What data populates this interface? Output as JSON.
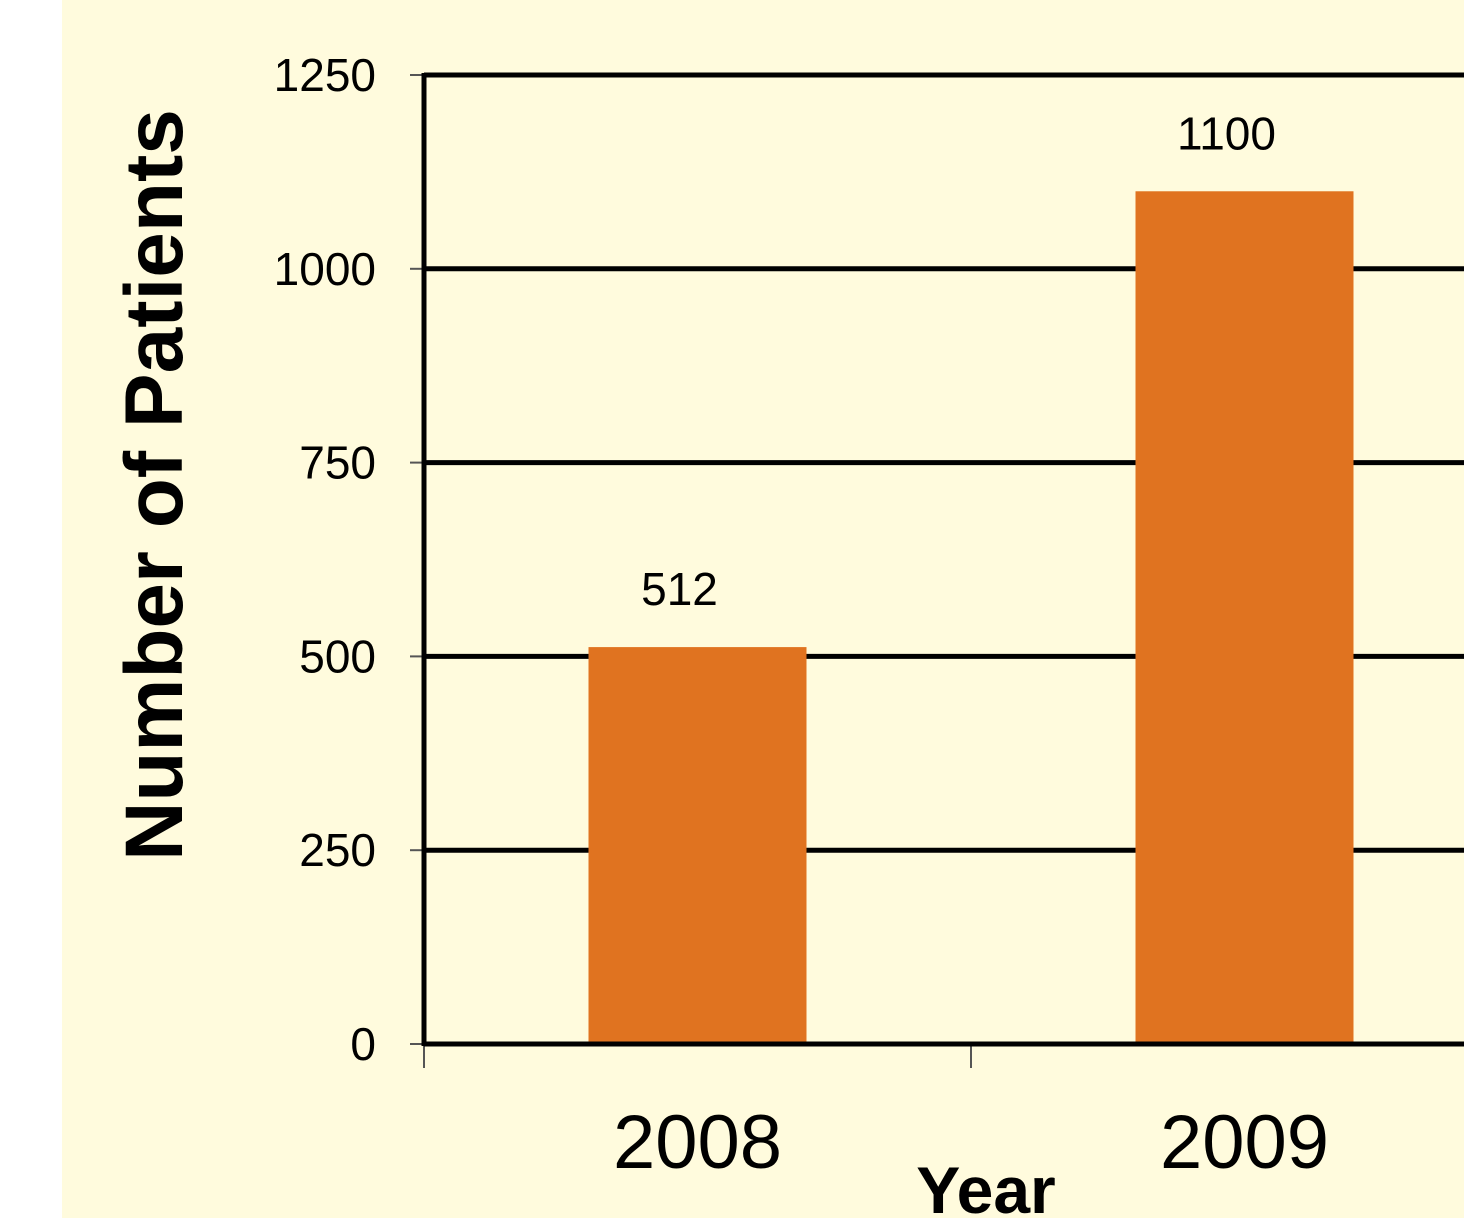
{
  "colors": {
    "page_background": "#ffffff",
    "plot_background": "#fffbdd",
    "bar": "#e07320",
    "grid": "#000000",
    "text": "#000000"
  },
  "chart_data": {
    "type": "bar",
    "title": "",
    "xlabel": "Year",
    "ylabel": "Number of Patients",
    "categories": [
      "2008",
      "2009"
    ],
    "values": [
      512,
      1100
    ],
    "data_labels": [
      "512",
      "1100"
    ],
    "ylim": [
      0,
      1250
    ],
    "yticks": [
      0,
      250,
      500,
      750,
      1000,
      1250
    ],
    "ytick_labels": [
      "0",
      "250",
      "500",
      "750",
      "1000",
      "1250"
    ],
    "grid": true,
    "legend": "none"
  }
}
